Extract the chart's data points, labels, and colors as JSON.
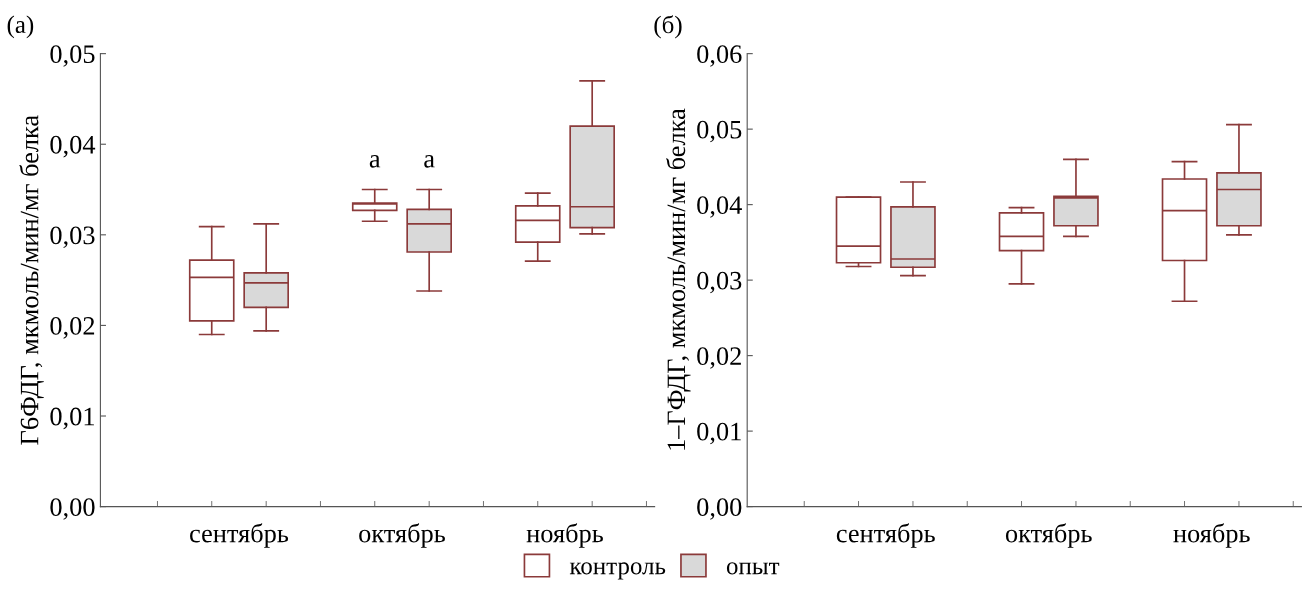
{
  "chart_data": [
    {
      "type": "box",
      "title": "(a)",
      "ylabel": "Г6ФДГ, мкмоль/мин/мг белка",
      "categories": [
        "сентябрь",
        "октябрь",
        "ноябрь"
      ],
      "ylim": [
        0,
        0.05
      ],
      "yticks": [
        {
          "value": 0,
          "label": "0,00"
        },
        {
          "value": 0.01,
          "label": "0,01"
        },
        {
          "value": 0.02,
          "label": "0,02"
        },
        {
          "value": 0.03,
          "label": "0,03"
        },
        {
          "value": 0.04,
          "label": "0,04"
        },
        {
          "value": 0.05,
          "label": "0,05"
        }
      ],
      "grid": false,
      "legend": "bottom",
      "series": [
        {
          "name": "контроль",
          "color": "#ffffff",
          "boxes": [
            {
              "low": 0.019,
              "q1": 0.0205,
              "median": 0.0253,
              "q3": 0.0272,
              "high": 0.0309
            },
            {
              "low": 0.0315,
              "q1": 0.0327,
              "median": 0.0334,
              "q3": 0.0335,
              "high": 0.035
            },
            {
              "low": 0.0271,
              "q1": 0.0292,
              "median": 0.0316,
              "q3": 0.0332,
              "high": 0.0346
            }
          ]
        },
        {
          "name": "опыт",
          "color": "#d9d9d9",
          "boxes": [
            {
              "low": 0.0194,
              "q1": 0.022,
              "median": 0.0247,
              "q3": 0.0258,
              "high": 0.0312
            },
            {
              "low": 0.0238,
              "q1": 0.0281,
              "median": 0.0312,
              "q3": 0.0328,
              "high": 0.035
            },
            {
              "low": 0.0301,
              "q1": 0.0308,
              "median": 0.0331,
              "q3": 0.042,
              "high": 0.047
            }
          ]
        }
      ],
      "annotations": [
        "a",
        "a"
      ]
    },
    {
      "type": "box",
      "title": "(б)",
      "ylabel": "1–ГФДГ, мкмоль/мин/мг белка",
      "categories": [
        "сентябрь",
        "октябрь",
        "ноябрь"
      ],
      "ylim": [
        0,
        0.06
      ],
      "yticks": [
        {
          "value": 0,
          "label": "0,00"
        },
        {
          "value": 0.01,
          "label": "0,01"
        },
        {
          "value": 0.02,
          "label": "0,02"
        },
        {
          "value": 0.03,
          "label": "0,03"
        },
        {
          "value": 0.04,
          "label": "0,04"
        },
        {
          "value": 0.05,
          "label": "0,05"
        },
        {
          "value": 0.06,
          "label": "0,06"
        }
      ],
      "grid": false,
      "series": [
        {
          "name": "контроль",
          "color": "#ffffff",
          "boxes": [
            {
              "low": 0.0318,
              "q1": 0.0323,
              "median": 0.0345,
              "q3": 0.041,
              "high": 0.041
            },
            {
              "low": 0.0295,
              "q1": 0.0339,
              "median": 0.0358,
              "q3": 0.0389,
              "high": 0.0396
            },
            {
              "low": 0.0272,
              "q1": 0.0326,
              "median": 0.0392,
              "q3": 0.0434,
              "high": 0.0457
            }
          ]
        },
        {
          "name": "опыт",
          "color": "#d9d9d9",
          "boxes": [
            {
              "low": 0.0306,
              "q1": 0.0317,
              "median": 0.0328,
              "q3": 0.0397,
              "high": 0.043
            },
            {
              "low": 0.0358,
              "q1": 0.0372,
              "median": 0.0409,
              "q3": 0.0411,
              "high": 0.046
            },
            {
              "low": 0.036,
              "q1": 0.0372,
              "median": 0.042,
              "q3": 0.0442,
              "high": 0.0506
            }
          ]
        }
      ]
    }
  ]
}
